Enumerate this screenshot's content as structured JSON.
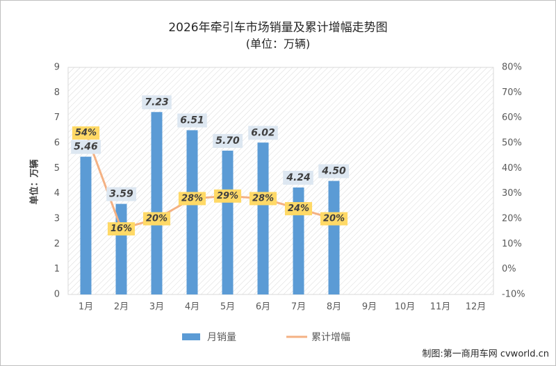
{
  "chart_data": {
    "type": "bar_line",
    "title": "2026年牵引车市场销量及累计增幅走势图",
    "subtitle": "(单位：万辆)",
    "y_label": "单位：万辆",
    "source": "制图:第一商用车网 cvworld.cn",
    "categories": [
      "1月",
      "2月",
      "3月",
      "4月",
      "5月",
      "6月",
      "7月",
      "8月",
      "9月",
      "10月",
      "11月",
      "12月"
    ],
    "series": [
      {
        "name": "月销量",
        "type": "bar",
        "color": "#5b9bd5",
        "values": [
          5.46,
          3.59,
          7.23,
          6.51,
          5.7,
          6.02,
          4.24,
          4.5,
          null,
          null,
          null,
          null
        ],
        "value_labels": [
          "5.46",
          "3.59",
          "7.23",
          "6.51",
          "5.70",
          "6.02",
          "4.24",
          "4.50",
          null,
          null,
          null,
          null
        ]
      },
      {
        "name": "累计增幅",
        "type": "line",
        "axis": "y2",
        "color": "#f4b183",
        "values": [
          54,
          16,
          20,
          28,
          29,
          28,
          24,
          20,
          null,
          null,
          null,
          null
        ],
        "value_labels": [
          "54%",
          "16%",
          "20%",
          "28%",
          "29%",
          "28%",
          "24%",
          "20%",
          null,
          null,
          null,
          null
        ]
      }
    ],
    "ylim": [
      0,
      9
    ],
    "yticks": [
      0,
      1,
      2,
      3,
      4,
      5,
      6,
      7,
      8,
      9
    ],
    "y2lim": [
      -10,
      80
    ],
    "y2ticks": [
      {
        "value": -10,
        "label": "-10%"
      },
      {
        "value": 0,
        "label": "0%"
      },
      {
        "value": 10,
        "label": "10%"
      },
      {
        "value": 20,
        "label": "20%"
      },
      {
        "value": 30,
        "label": "30%"
      },
      {
        "value": 40,
        "label": "40%"
      },
      {
        "value": 50,
        "label": "50%"
      },
      {
        "value": 60,
        "label": "60%"
      },
      {
        "value": 70,
        "label": "70%"
      },
      {
        "value": 80,
        "label": "80%"
      }
    ],
    "legend": "bottom"
  }
}
